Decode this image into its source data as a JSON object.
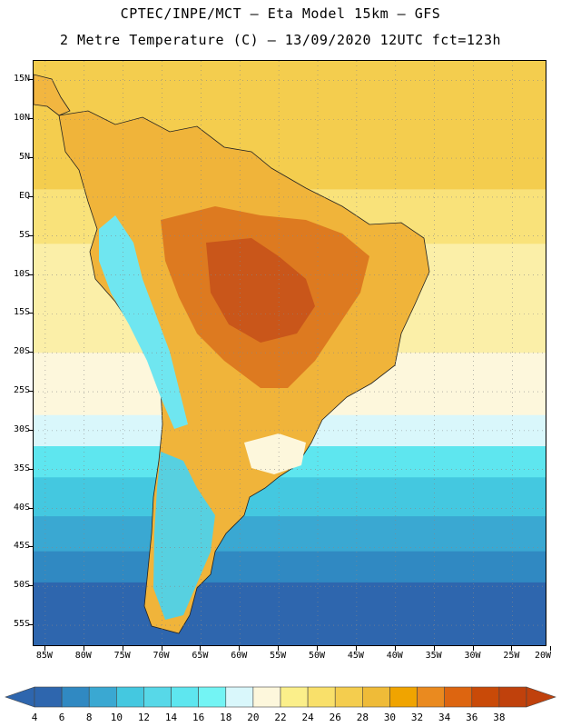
{
  "title": {
    "line1": "CPTEC/INPE/MCT –  Eta Model 15km – GFS",
    "line2": "2 Metre Temperature (C) – 13/09/2020 12UTC fct=123h"
  },
  "map": {
    "lat_labels": [
      "15N",
      "10N",
      "5N",
      "EQ",
      "5S",
      "10S",
      "15S",
      "20S",
      "25S",
      "30S",
      "35S",
      "40S",
      "45S",
      "50S",
      "55S"
    ],
    "lon_labels": [
      "85W",
      "80W",
      "75W",
      "70W",
      "65W",
      "60W",
      "55W",
      "50W",
      "45W",
      "40W",
      "35W",
      "30W",
      "25W",
      "20W"
    ],
    "lat_range": [
      17.5,
      -57.8
    ],
    "lon_range": [
      -86.5,
      -20.5
    ],
    "ocean_bands": [
      {
        "from_lat": 17.5,
        "to_lat": 1.0,
        "color": "#f4cd4e"
      },
      {
        "from_lat": 1.0,
        "to_lat": -6.0,
        "color": "#f9e27a"
      },
      {
        "from_lat": -6.0,
        "to_lat": -20.0,
        "color": "#fbefa8"
      },
      {
        "from_lat": -20.0,
        "to_lat": -28.0,
        "color": "#fdf7dc"
      },
      {
        "from_lat": -28.0,
        "to_lat": -32.0,
        "color": "#d9f7fb"
      },
      {
        "from_lat": -32.0,
        "to_lat": -36.0,
        "color": "#5ee6ef"
      },
      {
        "from_lat": -36.0,
        "to_lat": -41.0,
        "color": "#44c8e0"
      },
      {
        "from_lat": -41.0,
        "to_lat": -45.5,
        "color": "#3aa8d2"
      },
      {
        "from_lat": -45.5,
        "to_lat": -49.5,
        "color": "#3089c2"
      },
      {
        "from_lat": -49.5,
        "to_lat": -57.8,
        "color": "#2e66ae"
      }
    ]
  },
  "colorbar": {
    "colors": [
      "#2e66ae",
      "#3089c2",
      "#3aa8d2",
      "#44c8e0",
      "#57d8e8",
      "#5ee6ef",
      "#73f4f4",
      "#d9f7fb",
      "#fdf7dc",
      "#fbef8a",
      "#f9e06a",
      "#f4cd4e",
      "#efbb38",
      "#f0a400",
      "#ea8a1f",
      "#dd6510",
      "#c94a08",
      "#c0410c"
    ],
    "labels": [
      "4",
      "6",
      "8",
      "10",
      "12",
      "14",
      "16",
      "18",
      "20",
      "22",
      "24",
      "26",
      "28",
      "30",
      "32",
      "34",
      "36",
      "38"
    ]
  }
}
